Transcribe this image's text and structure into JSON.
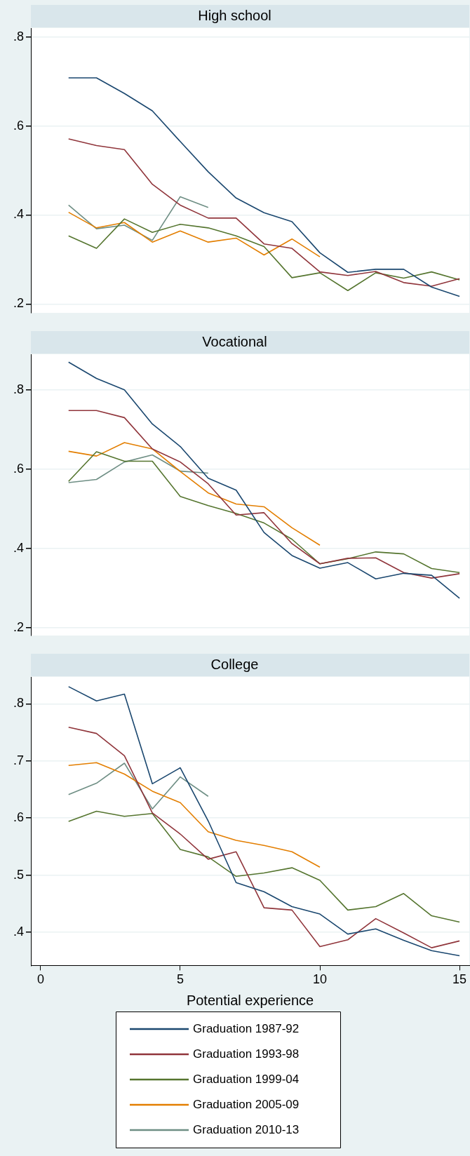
{
  "chart_data": [
    {
      "type": "line",
      "title": "High school",
      "x": [
        1,
        2,
        3,
        4,
        5,
        6,
        7,
        8,
        9,
        10,
        11,
        12,
        13,
        14,
        15
      ],
      "xlim": [
        -0.35,
        15.35
      ],
      "xticks": [
        0,
        5,
        10,
        15
      ],
      "ylim": [
        0.18,
        0.82
      ],
      "yticks": [
        {
          "value": 0.2,
          "label": ".2"
        },
        {
          "value": 0.4,
          "label": ".4"
        },
        {
          "value": 0.6,
          "label": ".6"
        },
        {
          "value": 0.8,
          "label": ".8"
        }
      ],
      "grid": "y",
      "tick_labels": "y",
      "marker": "none",
      "series": [
        {
          "color": "#1a476f",
          "values": [
            0.708,
            0.708,
            0.673,
            0.634,
            0.565,
            0.497,
            0.438,
            0.405,
            0.385,
            0.315,
            0.271,
            0.278,
            0.278,
            0.238,
            0.217
          ]
        },
        {
          "color": "#90353b",
          "values": [
            0.571,
            0.556,
            0.547,
            0.469,
            0.422,
            0.393,
            0.393,
            0.335,
            0.325,
            0.272,
            0.264,
            0.273,
            0.248,
            0.24,
            0.257
          ]
        },
        {
          "color": "#55752f",
          "values": [
            0.353,
            0.325,
            0.391,
            0.361,
            0.379,
            0.371,
            0.353,
            0.329,
            0.259,
            0.27,
            0.23,
            0.27,
            0.258,
            0.272,
            0.254
          ]
        },
        {
          "color": "#e37e00",
          "values": [
            0.406,
            0.371,
            0.383,
            0.339,
            0.364,
            0.339,
            0.348,
            0.31,
            0.346,
            0.306,
            null,
            null,
            null,
            null,
            null
          ]
        },
        {
          "color": "#6e8e84",
          "values": [
            0.422,
            0.369,
            0.377,
            0.343,
            0.441,
            0.417,
            null,
            null,
            null,
            null,
            null,
            null,
            null,
            null,
            null
          ]
        }
      ]
    },
    {
      "type": "line",
      "title": "Vocational",
      "x": [
        1,
        2,
        3,
        4,
        5,
        6,
        7,
        8,
        9,
        10,
        11,
        12,
        13,
        14,
        15
      ],
      "xlim": [
        -0.35,
        15.35
      ],
      "xticks": [
        0,
        5,
        10,
        15
      ],
      "ylim": [
        0.18,
        0.89
      ],
      "yticks": [
        {
          "value": 0.2,
          "label": ".2"
        },
        {
          "value": 0.4,
          "label": ".4"
        },
        {
          "value": 0.6,
          "label": ".6"
        },
        {
          "value": 0.8,
          "label": ".8"
        }
      ],
      "grid": "y",
      "tick_labels": "y",
      "marker": "none",
      "series": [
        {
          "color": "#1a476f",
          "values": [
            0.87,
            0.829,
            0.8,
            0.714,
            0.657,
            0.577,
            0.547,
            0.44,
            0.382,
            0.35,
            0.364,
            0.323,
            0.337,
            0.332,
            0.274
          ]
        },
        {
          "color": "#90353b",
          "values": [
            0.748,
            0.748,
            0.73,
            0.651,
            0.618,
            0.563,
            0.484,
            0.49,
            0.412,
            0.361,
            0.375,
            0.376,
            0.339,
            0.325,
            0.336
          ]
        },
        {
          "color": "#55752f",
          "values": [
            0.569,
            0.644,
            0.62,
            0.62,
            0.531,
            0.508,
            0.488,
            0.464,
            0.423,
            0.361,
            0.374,
            0.391,
            0.386,
            0.349,
            0.339
          ]
        },
        {
          "color": "#e37e00",
          "values": [
            0.645,
            0.633,
            0.667,
            0.651,
            0.594,
            0.54,
            0.512,
            0.505,
            0.452,
            0.408,
            null,
            null,
            null,
            null,
            null
          ]
        },
        {
          "color": "#6e8e84",
          "values": [
            0.566,
            0.574,
            0.618,
            0.636,
            0.595,
            0.59,
            null,
            null,
            null,
            null,
            null,
            null,
            null,
            null,
            null
          ]
        }
      ]
    },
    {
      "type": "line",
      "title": "College",
      "xlabel": "Potential experience",
      "x": [
        1,
        2,
        3,
        4,
        5,
        6,
        7,
        8,
        9,
        10,
        11,
        12,
        13,
        14,
        15
      ],
      "xlim": [
        -0.35,
        15.35
      ],
      "xticks": [
        0,
        5,
        10,
        15
      ],
      "ylim": [
        0.342,
        0.847
      ],
      "yticks": [
        {
          "value": 0.4,
          "label": ".4"
        },
        {
          "value": 0.5,
          "label": ".5"
        },
        {
          "value": 0.6,
          "label": ".6"
        },
        {
          "value": 0.7,
          "label": ".7"
        },
        {
          "value": 0.8,
          "label": ".8"
        }
      ],
      "grid": "y",
      "marker": "none",
      "legend": "bottom",
      "series": [
        {
          "name": "Graduation 1987-92",
          "color": "#1a476f",
          "values": [
            0.83,
            0.805,
            0.817,
            0.66,
            0.688,
            0.595,
            0.487,
            0.471,
            0.445,
            0.432,
            0.397,
            0.406,
            0.386,
            0.368,
            0.359
          ]
        },
        {
          "name": "Graduation 1993-98",
          "color": "#90353b",
          "values": [
            0.759,
            0.748,
            0.709,
            0.609,
            0.572,
            0.528,
            0.541,
            0.443,
            0.439,
            0.375,
            0.387,
            0.424,
            0.399,
            0.373,
            0.385
          ]
        },
        {
          "name": "Graduation 1999-04",
          "color": "#55752f",
          "values": [
            0.594,
            0.612,
            0.603,
            0.608,
            0.545,
            0.532,
            0.498,
            0.504,
            0.513,
            0.491,
            0.439,
            0.445,
            0.468,
            0.429,
            0.418
          ]
        },
        {
          "name": "Graduation 2005-09",
          "color": "#e37e00",
          "values": [
            0.692,
            0.697,
            0.677,
            0.647,
            0.627,
            0.576,
            0.561,
            0.552,
            0.541,
            0.514,
            null,
            null,
            null,
            null,
            null
          ]
        },
        {
          "name": "Graduation 2010-13",
          "color": "#6e8e84",
          "values": [
            0.641,
            0.661,
            0.696,
            0.616,
            0.672,
            0.638,
            null,
            null,
            null,
            null,
            null,
            null,
            null,
            null,
            null
          ]
        }
      ]
    }
  ]
}
